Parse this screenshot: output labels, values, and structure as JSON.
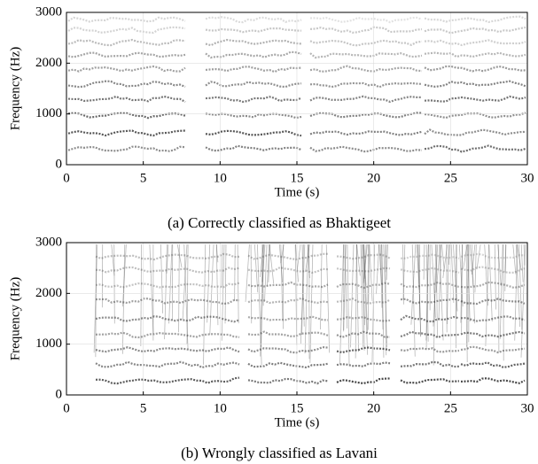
{
  "chart_data": [
    {
      "type": "spectrogram",
      "xlabel": "Time (s)",
      "ylabel": "Frequency (Hz)",
      "xlim": [
        0,
        30
      ],
      "ylim": [
        0,
        3000
      ],
      "xticks": [
        0,
        5,
        10,
        15,
        20,
        25,
        30
      ],
      "yticks": [
        0,
        1000,
        2000,
        3000
      ],
      "grid": true,
      "caption": "(a) Correctly classified as Bhaktigeet"
    },
    {
      "type": "spectrogram",
      "xlabel": "Time (s)",
      "ylabel": "Frequency (Hz)",
      "xlim": [
        0,
        30
      ],
      "ylim": [
        0,
        3000
      ],
      "xticks": [
        0,
        5,
        10,
        15,
        20,
        25,
        30
      ],
      "yticks": [
        0,
        1000,
        2000,
        3000
      ],
      "grid": true,
      "caption": "(b) Wrongly classified as Lavani"
    }
  ]
}
